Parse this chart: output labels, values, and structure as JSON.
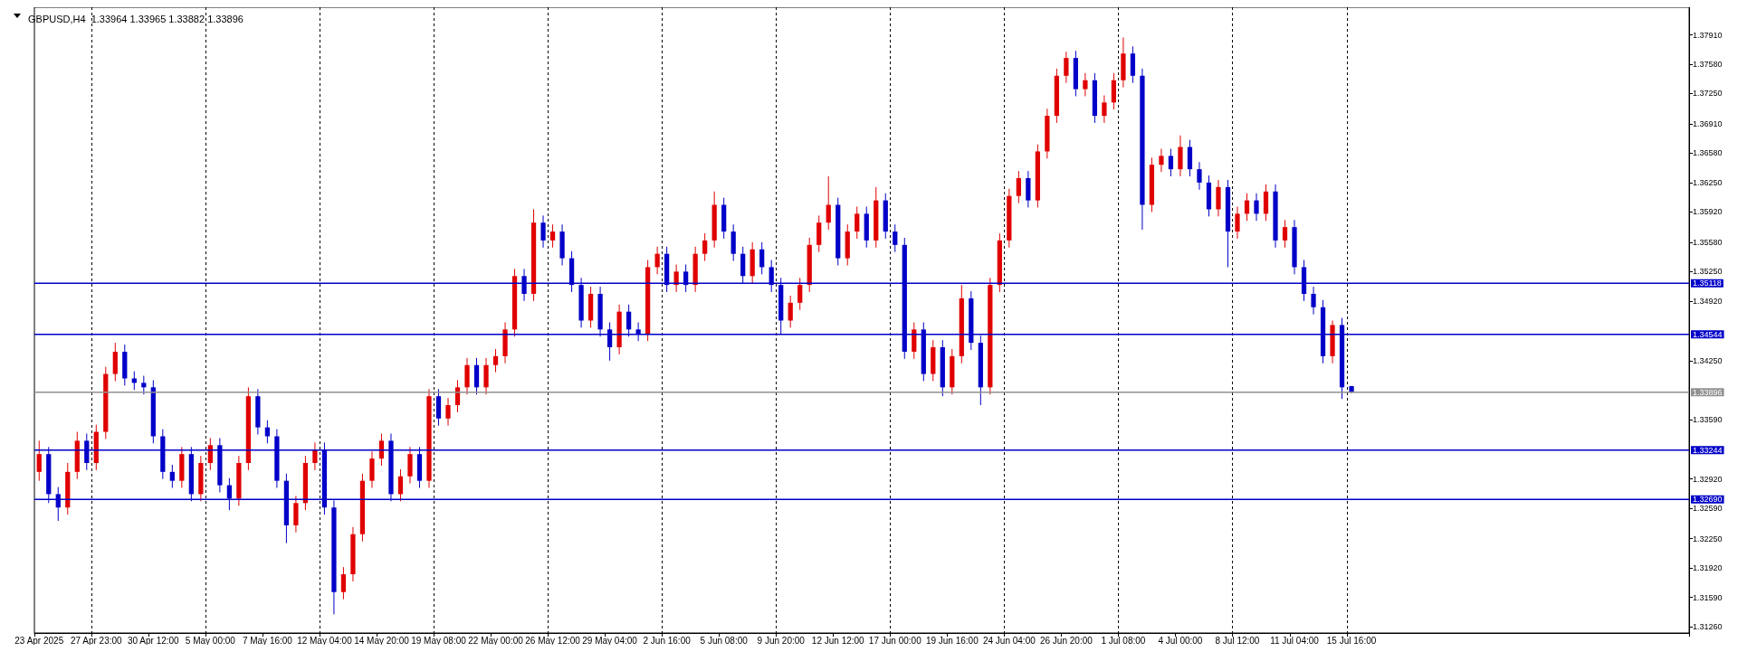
{
  "chart_data": {
    "type": "candlestick",
    "title": "GBPUSD,H4  1.33964 1.33965 1.33882 1.33896",
    "categories": [
      "23 Apr 2025",
      null,
      null,
      null,
      null,
      null,
      "27 Apr 23:00",
      null,
      null,
      null,
      null,
      null,
      "30 Apr 12:00",
      null,
      null,
      null,
      null,
      null,
      "5 May 00:00",
      null,
      null,
      null,
      null,
      null,
      "7 May 16:00",
      null,
      null,
      null,
      null,
      null,
      "12 May 04:00",
      null,
      null,
      null,
      null,
      null,
      "14 May 20:00",
      null,
      null,
      null,
      null,
      null,
      "19 May 08:00",
      null,
      null,
      null,
      null,
      null,
      "22 May 00:00",
      null,
      null,
      null,
      null,
      null,
      "26 May 12:00",
      null,
      null,
      null,
      null,
      null,
      "29 May 04:00",
      null,
      null,
      null,
      null,
      null,
      "2 Jun 16:00",
      null,
      null,
      null,
      null,
      null,
      "5 Jun 08:00",
      null,
      null,
      null,
      null,
      null,
      "9 Jun 20:00",
      null,
      null,
      null,
      null,
      null,
      "12 Jun 12:00",
      null,
      null,
      null,
      null,
      null,
      "17 Jun 00:00",
      null,
      null,
      null,
      null,
      null,
      "19 Jun 16:00",
      null,
      null,
      null,
      null,
      null,
      "24 Jun 04:00",
      null,
      null,
      null,
      null,
      null,
      "26 Jun 20:00",
      null,
      null,
      null,
      null,
      null,
      "1 Jul 08:00",
      null,
      null,
      null,
      null,
      null,
      "4 Jul 00:00",
      null,
      null,
      null,
      null,
      null,
      "8 Jul 12:00",
      null,
      null,
      null,
      null,
      null,
      "11 Jul 04:00",
      null,
      null,
      null,
      null,
      null,
      "15 Jul 16:00",
      null,
      null,
      null,
      null,
      null,
      null,
      null,
      null,
      null,
      null,
      null,
      null,
      null,
      null,
      null,
      null,
      null,
      null,
      null,
      null,
      null,
      null,
      null,
      null,
      null,
      null,
      null,
      null,
      null,
      null,
      null,
      null,
      null,
      null,
      null
    ],
    "ohlc": [
      [
        1.33,
        1.3335,
        1.329,
        1.332
      ],
      [
        1.332,
        1.3328,
        1.3265,
        1.3275
      ],
      [
        1.3275,
        1.3283,
        1.3245,
        1.326
      ],
      [
        1.326,
        1.331,
        1.3252,
        1.33
      ],
      [
        1.33,
        1.3345,
        1.3292,
        1.3335
      ],
      [
        1.3335,
        1.3343,
        1.3302,
        1.331
      ],
      [
        1.331,
        1.3353,
        1.3302,
        1.3345
      ],
      [
        1.3345,
        1.3418,
        1.3337,
        1.341
      ],
      [
        1.341,
        1.3445,
        1.3402,
        1.3435
      ],
      [
        1.3435,
        1.3443,
        1.3397,
        1.3405
      ],
      [
        1.3405,
        1.3413,
        1.3392,
        1.34
      ],
      [
        1.34,
        1.3408,
        1.3387,
        1.3395
      ],
      [
        1.3395,
        1.3403,
        1.3332,
        1.334
      ],
      [
        1.334,
        1.3348,
        1.3292,
        1.33
      ],
      [
        1.33,
        1.3308,
        1.3282,
        1.329
      ],
      [
        1.329,
        1.3328,
        1.3282,
        1.332
      ],
      [
        1.332,
        1.3328,
        1.3267,
        1.3275
      ],
      [
        1.3275,
        1.3318,
        1.3267,
        1.331
      ],
      [
        1.331,
        1.3338,
        1.3302,
        1.333
      ],
      [
        1.333,
        1.3338,
        1.3277,
        1.3285
      ],
      [
        1.3285,
        1.3293,
        1.3257,
        1.327
      ],
      [
        1.327,
        1.3318,
        1.3262,
        1.331
      ],
      [
        1.331,
        1.3395,
        1.3302,
        1.3385
      ],
      [
        1.3385,
        1.3393,
        1.3342,
        1.335
      ],
      [
        1.335,
        1.3358,
        1.3332,
        1.334
      ],
      [
        1.334,
        1.3348,
        1.3282,
        1.329
      ],
      [
        1.329,
        1.3298,
        1.322,
        1.324
      ],
      [
        1.324,
        1.3273,
        1.3232,
        1.3265
      ],
      [
        1.3265,
        1.3318,
        1.3257,
        1.331
      ],
      [
        1.331,
        1.3333,
        1.3302,
        1.3325
      ],
      [
        1.3325,
        1.3333,
        1.3252,
        1.326
      ],
      [
        1.326,
        1.3268,
        1.314,
        1.3165
      ],
      [
        1.3165,
        1.3193,
        1.3157,
        1.3185
      ],
      [
        1.3185,
        1.3238,
        1.3177,
        1.323
      ],
      [
        1.323,
        1.3298,
        1.3222,
        1.329
      ],
      [
        1.329,
        1.3323,
        1.3282,
        1.3315
      ],
      [
        1.3315,
        1.3343,
        1.3307,
        1.3335
      ],
      [
        1.3335,
        1.3343,
        1.3267,
        1.3275
      ],
      [
        1.3275,
        1.3303,
        1.3267,
        1.3295
      ],
      [
        1.3295,
        1.3328,
        1.3287,
        1.332
      ],
      [
        1.332,
        1.3328,
        1.3282,
        1.329
      ],
      [
        1.329,
        1.3393,
        1.3282,
        1.3385
      ],
      [
        1.3385,
        1.3393,
        1.3352,
        1.336
      ],
      [
        1.336,
        1.3383,
        1.3352,
        1.3375
      ],
      [
        1.3375,
        1.3403,
        1.3367,
        1.3395
      ],
      [
        1.3395,
        1.3428,
        1.3387,
        1.342
      ],
      [
        1.342,
        1.3428,
        1.3387,
        1.3395
      ],
      [
        1.3395,
        1.3428,
        1.3387,
        1.342
      ],
      [
        1.342,
        1.3438,
        1.3412,
        1.343
      ],
      [
        1.343,
        1.3468,
        1.3422,
        1.346
      ],
      [
        1.346,
        1.3528,
        1.3452,
        1.352
      ],
      [
        1.352,
        1.3528,
        1.3492,
        1.35
      ],
      [
        1.35,
        1.3595,
        1.3492,
        1.358
      ],
      [
        1.358,
        1.3588,
        1.3552,
        1.356
      ],
      [
        1.356,
        1.3578,
        1.3552,
        1.357
      ],
      [
        1.357,
        1.3578,
        1.3532,
        1.354
      ],
      [
        1.354,
        1.3548,
        1.3502,
        1.351
      ],
      [
        1.351,
        1.3518,
        1.3462,
        1.347
      ],
      [
        1.347,
        1.3508,
        1.3462,
        1.35
      ],
      [
        1.35,
        1.3508,
        1.3452,
        1.346
      ],
      [
        1.346,
        1.3468,
        1.3425,
        1.344
      ],
      [
        1.344,
        1.3488,
        1.3432,
        1.348
      ],
      [
        1.348,
        1.3488,
        1.3452,
        1.346
      ],
      [
        1.346,
        1.3468,
        1.3447,
        1.3455
      ],
      [
        1.3455,
        1.3538,
        1.3447,
        1.353
      ],
      [
        1.353,
        1.3553,
        1.3522,
        1.3545
      ],
      [
        1.3545,
        1.3553,
        1.3502,
        1.351
      ],
      [
        1.351,
        1.3533,
        1.3502,
        1.3525
      ],
      [
        1.3525,
        1.3533,
        1.3502,
        1.351
      ],
      [
        1.351,
        1.3553,
        1.3502,
        1.3545
      ],
      [
        1.3545,
        1.3568,
        1.3537,
        1.356
      ],
      [
        1.356,
        1.3615,
        1.3552,
        1.36
      ],
      [
        1.36,
        1.3608,
        1.3562,
        1.357
      ],
      [
        1.357,
        1.3578,
        1.3537,
        1.3545
      ],
      [
        1.3545,
        1.3553,
        1.3512,
        1.352
      ],
      [
        1.352,
        1.3558,
        1.3512,
        1.355
      ],
      [
        1.355,
        1.3558,
        1.3522,
        1.353
      ],
      [
        1.353,
        1.3538,
        1.3502,
        1.351
      ],
      [
        1.351,
        1.3518,
        1.3455,
        1.347
      ],
      [
        1.347,
        1.3498,
        1.3462,
        1.349
      ],
      [
        1.349,
        1.3518,
        1.3482,
        1.351
      ],
      [
        1.351,
        1.3563,
        1.3502,
        1.3555
      ],
      [
        1.3555,
        1.3588,
        1.3547,
        1.358
      ],
      [
        1.358,
        1.3632,
        1.3572,
        1.36
      ],
      [
        1.36,
        1.3608,
        1.3532,
        1.354
      ],
      [
        1.354,
        1.3578,
        1.3532,
        1.357
      ],
      [
        1.357,
        1.3598,
        1.3562,
        1.359
      ],
      [
        1.359,
        1.3598,
        1.3552,
        1.356
      ],
      [
        1.356,
        1.362,
        1.3552,
        1.3605
      ],
      [
        1.3605,
        1.3613,
        1.3562,
        1.357
      ],
      [
        1.357,
        1.3578,
        1.3547,
        1.3555
      ],
      [
        1.3555,
        1.3563,
        1.3427,
        1.3435
      ],
      [
        1.3435,
        1.3468,
        1.3427,
        1.346
      ],
      [
        1.346,
        1.3468,
        1.3402,
        1.341
      ],
      [
        1.341,
        1.3448,
        1.3402,
        1.344
      ],
      [
        1.344,
        1.3448,
        1.3385,
        1.3395
      ],
      [
        1.3395,
        1.3438,
        1.3387,
        1.343
      ],
      [
        1.343,
        1.351,
        1.3422,
        1.3495
      ],
      [
        1.3495,
        1.3503,
        1.3437,
        1.3445
      ],
      [
        1.3445,
        1.3453,
        1.3375,
        1.3395
      ],
      [
        1.3395,
        1.3518,
        1.3387,
        1.351
      ],
      [
        1.351,
        1.3568,
        1.3502,
        1.356
      ],
      [
        1.356,
        1.3618,
        1.3552,
        1.361
      ],
      [
        1.361,
        1.3638,
        1.3602,
        1.363
      ],
      [
        1.363,
        1.3638,
        1.3597,
        1.3605
      ],
      [
        1.3605,
        1.3668,
        1.3597,
        1.366
      ],
      [
        1.366,
        1.3708,
        1.3652,
        1.37
      ],
      [
        1.37,
        1.3753,
        1.3692,
        1.3745
      ],
      [
        1.3745,
        1.3772,
        1.3737,
        1.3765
      ],
      [
        1.3765,
        1.3773,
        1.3722,
        1.373
      ],
      [
        1.373,
        1.3748,
        1.3722,
        1.374
      ],
      [
        1.374,
        1.3748,
        1.3692,
        1.37
      ],
      [
        1.37,
        1.3723,
        1.3692,
        1.3715
      ],
      [
        1.3715,
        1.3748,
        1.3707,
        1.374
      ],
      [
        1.374,
        1.3788,
        1.3732,
        1.377
      ],
      [
        1.377,
        1.3778,
        1.3737,
        1.3745
      ],
      [
        1.3745,
        1.3753,
        1.3572,
        1.36
      ],
      [
        1.36,
        1.3653,
        1.3592,
        1.3645
      ],
      [
        1.3645,
        1.3663,
        1.3637,
        1.3655
      ],
      [
        1.3655,
        1.3663,
        1.3632,
        1.364
      ],
      [
        1.364,
        1.3678,
        1.3632,
        1.3665
      ],
      [
        1.3665,
        1.3673,
        1.3632,
        1.364
      ],
      [
        1.364,
        1.3648,
        1.3617,
        1.3625
      ],
      [
        1.3625,
        1.3633,
        1.3587,
        1.3595
      ],
      [
        1.3595,
        1.3628,
        1.3587,
        1.362
      ],
      [
        1.362,
        1.3628,
        1.353,
        1.357
      ],
      [
        1.357,
        1.3598,
        1.3562,
        1.359
      ],
      [
        1.359,
        1.3613,
        1.3582,
        1.3605
      ],
      [
        1.3605,
        1.3613,
        1.3582,
        1.359
      ],
      [
        1.359,
        1.3623,
        1.3582,
        1.3615
      ],
      [
        1.3615,
        1.3623,
        1.3552,
        1.356
      ],
      [
        1.356,
        1.3583,
        1.3552,
        1.3575
      ],
      [
        1.3575,
        1.3583,
        1.3522,
        1.353
      ],
      [
        1.353,
        1.3538,
        1.3492,
        1.35
      ],
      [
        1.35,
        1.3508,
        1.3477,
        1.3485
      ],
      [
        1.3485,
        1.3493,
        1.3422,
        1.343
      ],
      [
        1.343,
        1.347,
        1.3422,
        1.3465
      ],
      [
        1.3465,
        1.3473,
        1.3382,
        1.3395
      ],
      [
        1.33964,
        1.33965,
        1.33882,
        1.33896
      ],
      null,
      null,
      null,
      null,
      null,
      null,
      null,
      null,
      null,
      null,
      null,
      null,
      null,
      null,
      null,
      null,
      null,
      null,
      null,
      null,
      null,
      null,
      null,
      null,
      null,
      null,
      null,
      null,
      null,
      null,
      null,
      null,
      null,
      null,
      null
    ],
    "colors": [
      "#e00000",
      "#0000c8",
      "#0000c8",
      "#e00000",
      "#e00000",
      "#0000c8",
      "#e00000",
      "#e00000",
      "#e00000",
      "#0000c8",
      "#0000c8",
      "#0000c8",
      "#0000c8",
      "#0000c8",
      "#0000c8",
      "#e00000",
      "#0000c8",
      "#e00000",
      "#e00000",
      "#0000c8",
      "#0000c8",
      "#e00000",
      "#e00000",
      "#0000c8",
      "#0000c8",
      "#0000c8",
      "#0000c8",
      "#e00000",
      "#e00000",
      "#e00000",
      "#0000c8",
      "#0000c8",
      "#e00000",
      "#e00000",
      "#e00000",
      "#e00000",
      "#e00000",
      "#0000c8",
      "#e00000",
      "#e00000",
      "#0000c8",
      "#e00000",
      "#0000c8",
      "#e00000",
      "#e00000",
      "#e00000",
      "#0000c8",
      "#e00000",
      "#e00000",
      "#e00000",
      "#e00000",
      "#0000c8",
      "#e00000",
      "#0000c8",
      "#e00000",
      "#0000c8",
      "#0000c8",
      "#0000c8",
      "#e00000",
      "#0000c8",
      "#0000c8",
      "#e00000",
      "#0000c8",
      "#0000c8",
      "#e00000",
      "#e00000",
      "#0000c8",
      "#e00000",
      "#0000c8",
      "#e00000",
      "#e00000",
      "#e00000",
      "#0000c8",
      "#0000c8",
      "#0000c8",
      "#e00000",
      "#0000c8",
      "#0000c8",
      "#0000c8",
      "#e00000",
      "#e00000",
      "#e00000",
      "#e00000",
      "#e00000",
      "#0000c8",
      "#e00000",
      "#e00000",
      "#0000c8",
      "#e00000",
      "#0000c8",
      "#0000c8",
      "#0000c8",
      "#e00000",
      "#0000c8",
      "#e00000",
      "#0000c8",
      "#e00000",
      "#e00000",
      "#0000c8",
      "#0000c8",
      "#e00000",
      "#e00000",
      "#e00000",
      "#e00000",
      "#0000c8",
      "#e00000",
      "#e00000",
      "#e00000",
      "#e00000",
      "#0000c8",
      "#e00000",
      "#0000c8",
      "#e00000",
      "#e00000",
      "#e00000",
      "#0000c8",
      "#0000c8",
      "#e00000",
      "#e00000",
      "#0000c8",
      "#e00000",
      "#0000c8",
      "#0000c8",
      "#0000c8",
      "#e00000",
      "#0000c8",
      "#e00000",
      "#e00000",
      "#0000c8",
      "#e00000",
      "#0000c8",
      "#e00000",
      "#0000c8",
      "#0000c8",
      "#0000c8",
      "#0000c8",
      "#e00000",
      "#0000c8",
      "#0000c8",
      null,
      null,
      null,
      null,
      null,
      null,
      null,
      null,
      null,
      null,
      null,
      null,
      null,
      null,
      null,
      null,
      null,
      null,
      null,
      null,
      null,
      null,
      null,
      null,
      null,
      null,
      null,
      null,
      null,
      null,
      null,
      null,
      null,
      null,
      null
    ],
    "ylim": [
      1.3119,
      1.3822
    ],
    "yticks": [
      {
        "value": 1.3126,
        "label": "1.31260"
      },
      {
        "value": 1.3159,
        "label": "1.31590"
      },
      {
        "value": 1.3192,
        "label": "1.31920"
      },
      {
        "value": 1.3225,
        "label": "1.32250"
      },
      {
        "value": 1.3259,
        "label": "1.32590"
      },
      {
        "value": 1.3292,
        "label": "1.32920"
      },
      {
        "value": 1.3359,
        "label": "1.33590"
      },
      {
        "value": 1.3425,
        "label": "1.34250"
      },
      {
        "value": 1.3492,
        "label": "1.34920"
      },
      {
        "value": 1.3525,
        "label": "1.35250"
      },
      {
        "value": 1.3558,
        "label": "1.35580"
      },
      {
        "value": 1.3592,
        "label": "1.35920"
      },
      {
        "value": 1.3625,
        "label": "1.36250"
      },
      {
        "value": 1.3658,
        "label": "1.36580"
      },
      {
        "value": 1.3691,
        "label": "1.36910"
      },
      {
        "value": 1.3725,
        "label": "1.37250"
      },
      {
        "value": 1.3758,
        "label": "1.37580"
      },
      {
        "value": 1.3791,
        "label": "1.37910"
      }
    ],
    "ref_lines": [
      {
        "axis": "y",
        "value": 1.35118,
        "label": "1.35118",
        "color": "#0000c8"
      },
      {
        "axis": "y",
        "value": 1.34544,
        "label": "1.34544",
        "color": "#0000c8"
      },
      {
        "axis": "y",
        "value": 1.33896,
        "label": "1.33896",
        "color": "#909090"
      },
      {
        "axis": "y",
        "value": 1.33244,
        "label": "1.33244",
        "color": "#0000c8"
      },
      {
        "axis": "y",
        "value": 1.3269,
        "label": "1.32690",
        "color": "#0000c8"
      }
    ],
    "grid": "x"
  }
}
